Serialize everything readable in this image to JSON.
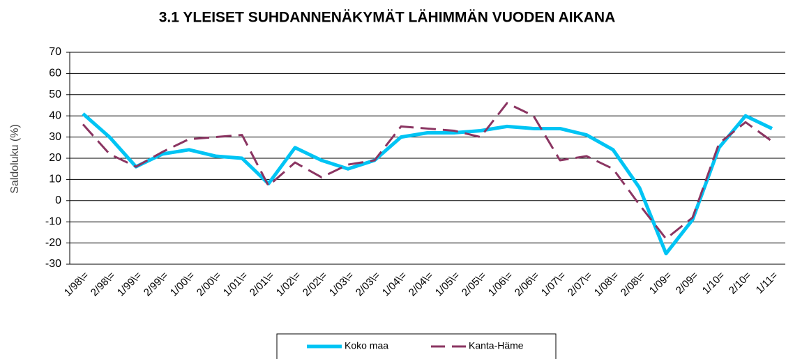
{
  "chart_data": {
    "type": "line",
    "title": "3.1 YLEISET SUHDANNENÄKYMÄT LÄHIMMÄN VUODEN AIKANA",
    "y_label": "Saldoluku (%)",
    "categories": [
      "1/98\\=",
      "2/98\\=",
      "1/99\\=",
      "2/99\\=",
      "1/00\\=",
      "2/00\\=",
      "1/01\\=",
      "2/01\\=",
      "1/02\\=",
      "2/02\\=",
      "1/03\\=",
      "2/03\\=",
      "1/04\\=",
      "2/04\\=",
      "1/05\\=",
      "2/05\\=",
      "1/06\\=",
      "2/06\\=",
      "1/07\\=",
      "2/07\\=",
      "1/08\\=",
      "2/08\\=",
      "1/09=",
      "2/09=",
      "1/10=",
      "2/10=",
      "1/11="
    ],
    "series": [
      {
        "name": "Koko maa",
        "color": "#00c4f4",
        "dash": false,
        "values": [
          41,
          30,
          16,
          22,
          24,
          21,
          20,
          8,
          25,
          19,
          15,
          19,
          30,
          32,
          32,
          33,
          35,
          34,
          34,
          31,
          24,
          6,
          -25,
          -9,
          25,
          40,
          34
        ]
      },
      {
        "name": "Kanta-Häme",
        "color": "#8b3562",
        "dash": true,
        "values": [
          36,
          22,
          16,
          23,
          29,
          30,
          31,
          7,
          18,
          11,
          17,
          19,
          35,
          34,
          33,
          30,
          46,
          40,
          19,
          21,
          15,
          -2,
          -18,
          -8,
          27,
          37,
          28
        ]
      }
    ],
    "ylim": [
      -30,
      70
    ],
    "yticks": [
      -30,
      -20,
      -10,
      0,
      10,
      20,
      30,
      40,
      50,
      60,
      70
    ],
    "grid": true
  }
}
